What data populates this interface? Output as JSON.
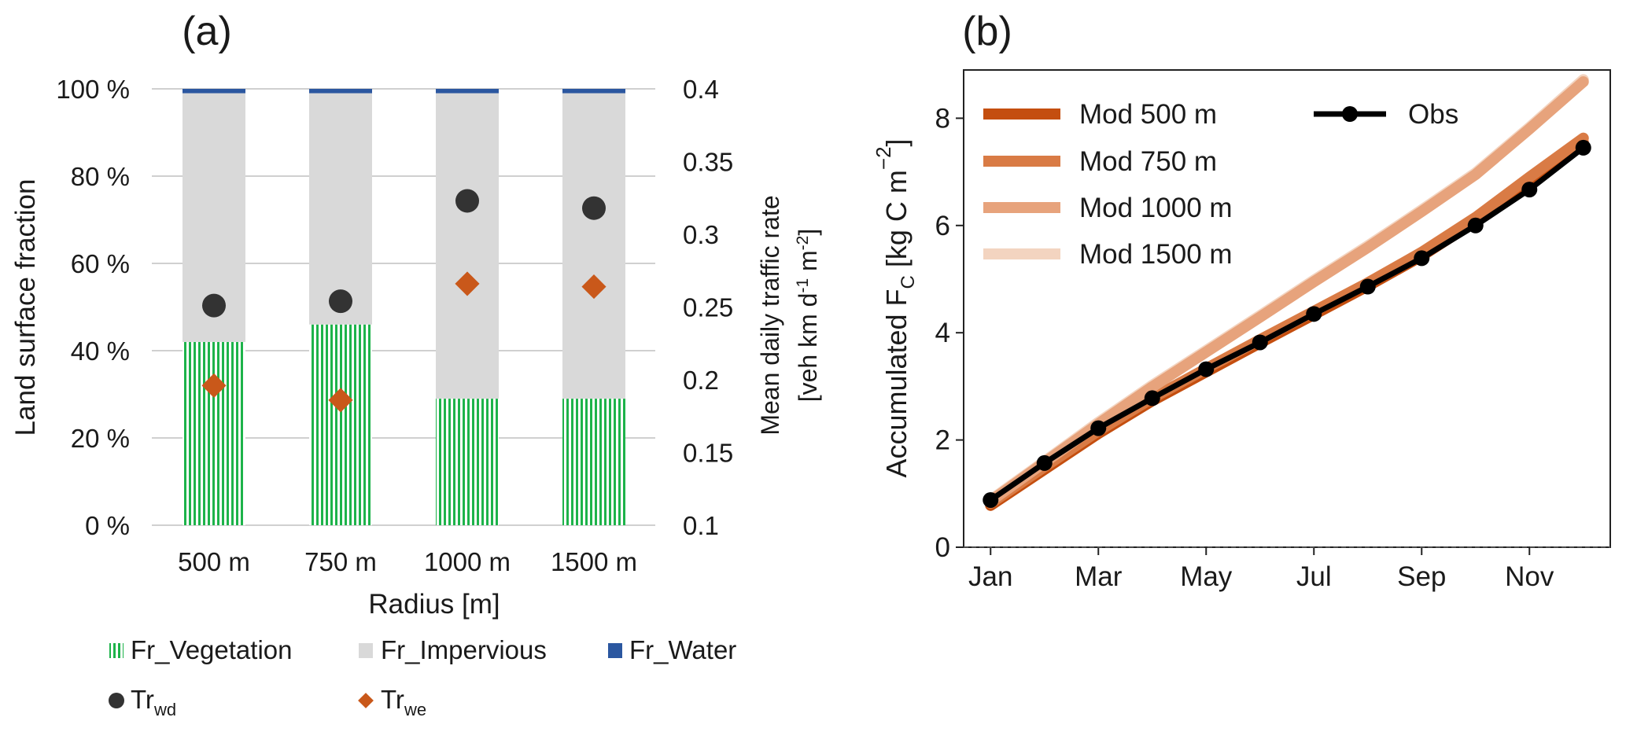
{
  "chart_data": [
    {
      "panel": "(a)",
      "type": "bar",
      "stacked": true,
      "title": "(a)",
      "categories": [
        "500 m",
        "750 m",
        "1000 m",
        "1500 m"
      ],
      "xlabel": "Radius [m]",
      "ylabel": "Land surface fraction",
      "ylim": [
        0,
        100
      ],
      "yticks": [
        "0 %",
        "20 %",
        "40 %",
        "60 %",
        "80 %",
        "100 %"
      ],
      "ytick_values": [
        0,
        20,
        40,
        60,
        80,
        100
      ],
      "grid": true,
      "series": [
        {
          "name": "Fr_Vegetation",
          "values": [
            42,
            46,
            29,
            29
          ],
          "color": "#1db34a",
          "pattern": "vertical-hatch"
        },
        {
          "name": "Fr_Impervious",
          "values": [
            57,
            53,
            70,
            70
          ],
          "color": "#d9d9d9"
        },
        {
          "name": "Fr_Water",
          "values": [
            1,
            1,
            1,
            1
          ],
          "color": "#2b57a0"
        }
      ],
      "secondary_axis": {
        "ylabel_line1": "Mean daily traffic rate",
        "ylabel_line2": "[veh km d-1 m-2]",
        "ylabel_parts": {
          "pre": "[veh km d",
          "sup1": "-1",
          "mid": " m",
          "sup2": "-2",
          "post": "]"
        },
        "ylim": [
          0.1,
          0.4
        ],
        "yticks": [
          "0.1",
          "0.15",
          "0.2",
          "0.25",
          "0.3",
          "0.35",
          "0.4"
        ],
        "ytick_values": [
          0.1,
          0.15,
          0.2,
          0.25,
          0.3,
          0.35,
          0.4
        ],
        "series": [
          {
            "name": "Tr_wd",
            "label_main": "Tr",
            "label_sub": "wd",
            "marker": "circle",
            "color": "#333333",
            "values": [
              0.251,
              0.254,
              0.323,
              0.318
            ]
          },
          {
            "name": "Tr_we",
            "label_main": "Tr",
            "label_sub": "we",
            "marker": "diamond",
            "color": "#c9581a",
            "values": [
              0.196,
              0.186,
              0.266,
              0.264
            ]
          }
        ]
      }
    },
    {
      "panel": "(b)",
      "type": "line",
      "title": "(b)",
      "x": [
        1,
        2,
        3,
        4,
        5,
        6,
        7,
        8,
        9,
        10,
        11,
        12
      ],
      "xticks": [
        "Jan",
        "Mar",
        "May",
        "Jul",
        "Sep",
        "Nov"
      ],
      "xtick_values": [
        1,
        3,
        5,
        7,
        9,
        11
      ],
      "xlim": [
        0.5,
        12.5
      ],
      "ylabel_parts": {
        "pre": "Accumulated F",
        "sub": "C",
        "mid": " [kg C m",
        "sup": "−2",
        "post": "]"
      },
      "ylim": [
        0,
        8.9
      ],
      "yticks": [
        "0",
        "2",
        "4",
        "6",
        "8"
      ],
      "ytick_values": [
        0,
        2,
        4,
        6,
        8
      ],
      "legend_location": "top-left",
      "series": [
        {
          "name": "Mod 500 m",
          "color": "#c44e0f",
          "values": [
            0.78,
            1.45,
            2.12,
            2.73,
            3.27,
            3.81,
            4.34,
            4.87,
            5.43,
            6.08,
            6.83,
            7.55
          ]
        },
        {
          "name": "Mod 750 m",
          "color": "#d97b45",
          "values": [
            0.82,
            1.5,
            2.17,
            2.78,
            3.33,
            3.87,
            4.4,
            4.93,
            5.5,
            6.15,
            6.9,
            7.63
          ]
        },
        {
          "name": "Mod 1500 m",
          "color": "#f3d4c0",
          "values": [
            0.88,
            1.6,
            2.33,
            3.02,
            3.67,
            4.32,
            4.98,
            5.62,
            6.29,
            6.98,
            7.83,
            8.72
          ]
        },
        {
          "name": "Mod 1000 m",
          "color": "#e7a37c",
          "values": [
            0.86,
            1.58,
            2.3,
            2.99,
            3.64,
            4.29,
            4.95,
            5.59,
            6.26,
            6.95,
            7.8,
            8.68
          ]
        },
        {
          "name": "Obs",
          "color": "#000000",
          "marker": "circle",
          "values": [
            0.88,
            1.57,
            2.22,
            2.78,
            3.32,
            3.82,
            4.35,
            4.86,
            5.39,
            6.0,
            6.67,
            7.45
          ]
        }
      ],
      "legend_order": [
        "Mod 500 m",
        "Mod 750 m",
        "Mod 1000 m",
        "Mod 1500 m",
        "Obs"
      ]
    }
  ]
}
